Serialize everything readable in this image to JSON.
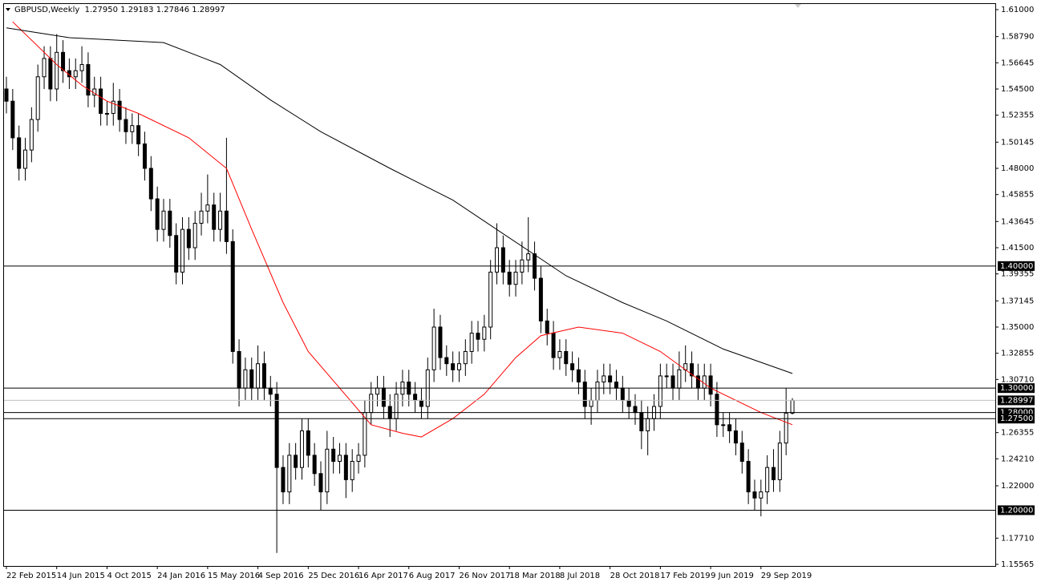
{
  "chart_data": {
    "type": "candlestick",
    "header": "GBPUSD,Weekly  1.27950 1.29183 1.27846 1.28997",
    "categories": [
      "22 Feb 2015",
      null,
      null,
      null,
      null,
      null,
      null,
      null,
      "14 Jun 2015",
      null,
      null,
      null,
      null,
      null,
      null,
      null,
      "4 Oct 2015",
      null,
      null,
      null,
      null,
      null,
      null,
      null,
      "24 Jan 2016",
      null,
      null,
      null,
      null,
      null,
      null,
      null,
      "15 May 2016",
      null,
      null,
      null,
      null,
      null,
      null,
      null,
      "4 Sep 2016",
      null,
      null,
      null,
      null,
      null,
      null,
      null,
      "25 Dec 2016",
      null,
      null,
      null,
      null,
      null,
      null,
      null,
      "16 Apr 2017",
      null,
      null,
      null,
      null,
      null,
      null,
      null,
      "6 Aug 2017",
      null,
      null,
      null,
      null,
      null,
      null,
      null,
      "26 Nov 2017",
      null,
      null,
      null,
      null,
      null,
      null,
      null,
      "18 Mar 2018",
      null,
      null,
      null,
      null,
      null,
      null,
      null,
      "8 Jul 2018",
      null,
      null,
      null,
      null,
      null,
      null,
      null,
      "28 Oct 2018",
      null,
      null,
      null,
      null,
      null,
      null,
      null,
      "17 Feb 2019",
      null,
      null,
      null,
      null,
      null,
      null,
      null,
      "9 Jun 2019",
      null,
      null,
      null,
      null,
      null,
      null,
      null,
      "29 Sep 2019",
      null,
      null,
      null,
      null,
      null
    ],
    "open": [
      1.545,
      1.535,
      1.505,
      1.48,
      1.495,
      1.52,
      1.555,
      1.57,
      1.545,
      1.575,
      1.56,
      1.555,
      1.56,
      1.565,
      1.54,
      1.545,
      1.525,
      1.525,
      1.535,
      1.52,
      1.51,
      1.515,
      1.5,
      1.48,
      1.455,
      1.43,
      1.445,
      1.425,
      1.395,
      1.43,
      1.415,
      1.435,
      1.445,
      1.45,
      1.43,
      1.445,
      1.42,
      1.33,
      1.3,
      1.315,
      1.3,
      1.32,
      1.3,
      1.295,
      1.235,
      1.215,
      1.245,
      1.235,
      1.265,
      1.245,
      1.23,
      1.215,
      1.25,
      1.24,
      1.245,
      1.225,
      1.24,
      1.245,
      1.28,
      1.295,
      1.3,
      1.285,
      1.275,
      1.295,
      1.305,
      1.295,
      1.29,
      1.285,
      1.315,
      1.35,
      1.325,
      1.32,
      1.315,
      1.32,
      1.33,
      1.345,
      1.34,
      1.35,
      1.395,
      1.415,
      1.395,
      1.385,
      1.395,
      1.405,
      1.41,
      1.39,
      1.355,
      1.345,
      1.325,
      1.33,
      1.32,
      1.315,
      1.305,
      1.285,
      1.29,
      1.305,
      1.31,
      1.305,
      1.3,
      1.29,
      1.285,
      1.28,
      1.265,
      1.275,
      1.285,
      1.31,
      1.31,
      1.3,
      1.315,
      1.32,
      1.31,
      1.3,
      1.31,
      1.295,
      1.27,
      1.27,
      1.265,
      1.255,
      1.24,
      1.215,
      1.21,
      1.215,
      1.235,
      1.225,
      1.255,
      1.2795
    ],
    "high": [
      1.555,
      1.545,
      1.515,
      1.505,
      1.53,
      1.565,
      1.58,
      1.58,
      1.59,
      1.585,
      1.57,
      1.57,
      1.58,
      1.575,
      1.555,
      1.555,
      1.535,
      1.55,
      1.545,
      1.53,
      1.525,
      1.525,
      1.51,
      1.49,
      1.465,
      1.455,
      1.455,
      1.435,
      1.44,
      1.44,
      1.445,
      1.46,
      1.475,
      1.46,
      1.46,
      1.505,
      1.43,
      1.34,
      1.325,
      1.325,
      1.335,
      1.33,
      1.31,
      1.305,
      1.245,
      1.255,
      1.255,
      1.275,
      1.275,
      1.255,
      1.24,
      1.265,
      1.26,
      1.255,
      1.255,
      1.25,
      1.255,
      1.29,
      1.305,
      1.31,
      1.31,
      1.295,
      1.305,
      1.315,
      1.315,
      1.305,
      1.3,
      1.325,
      1.365,
      1.36,
      1.335,
      1.33,
      1.33,
      1.34,
      1.355,
      1.355,
      1.36,
      1.405,
      1.435,
      1.425,
      1.405,
      1.405,
      1.42,
      1.44,
      1.42,
      1.4,
      1.365,
      1.355,
      1.34,
      1.34,
      1.33,
      1.325,
      1.315,
      1.3,
      1.315,
      1.32,
      1.32,
      1.315,
      1.31,
      1.3,
      1.295,
      1.29,
      1.285,
      1.295,
      1.32,
      1.32,
      1.32,
      1.33,
      1.335,
      1.33,
      1.32,
      1.32,
      1.32,
      1.305,
      1.28,
      1.28,
      1.275,
      1.265,
      1.25,
      1.225,
      1.225,
      1.245,
      1.25,
      1.265,
      1.3,
      1.29183
    ],
    "low": [
      1.525,
      1.495,
      1.47,
      1.47,
      1.485,
      1.51,
      1.545,
      1.535,
      1.535,
      1.55,
      1.545,
      1.545,
      1.55,
      1.53,
      1.53,
      1.515,
      1.515,
      1.515,
      1.51,
      1.5,
      1.5,
      1.49,
      1.47,
      1.445,
      1.42,
      1.42,
      1.415,
      1.385,
      1.385,
      1.405,
      1.405,
      1.425,
      1.435,
      1.42,
      1.42,
      1.41,
      1.32,
      1.285,
      1.29,
      1.29,
      1.29,
      1.29,
      1.285,
      1.165,
      1.205,
      1.205,
      1.225,
      1.225,
      1.235,
      1.22,
      1.2,
      1.205,
      1.23,
      1.23,
      1.21,
      1.215,
      1.23,
      1.235,
      1.27,
      1.285,
      1.275,
      1.26,
      1.265,
      1.285,
      1.285,
      1.28,
      1.275,
      1.275,
      1.305,
      1.315,
      1.31,
      1.305,
      1.305,
      1.31,
      1.32,
      1.33,
      1.33,
      1.34,
      1.385,
      1.385,
      1.375,
      1.375,
      1.385,
      1.395,
      1.38,
      1.345,
      1.335,
      1.315,
      1.315,
      1.31,
      1.305,
      1.295,
      1.275,
      1.27,
      1.28,
      1.295,
      1.295,
      1.29,
      1.28,
      1.275,
      1.27,
      1.25,
      1.245,
      1.265,
      1.275,
      1.3,
      1.29,
      1.29,
      1.305,
      1.3,
      1.29,
      1.29,
      1.285,
      1.26,
      1.26,
      1.255,
      1.245,
      1.23,
      1.205,
      1.2,
      1.195,
      1.205,
      1.215,
      1.215,
      1.245,
      1.27846
    ],
    "close": [
      1.535,
      1.505,
      1.48,
      1.495,
      1.52,
      1.555,
      1.57,
      1.545,
      1.575,
      1.56,
      1.555,
      1.56,
      1.565,
      1.54,
      1.545,
      1.525,
      1.525,
      1.535,
      1.52,
      1.51,
      1.515,
      1.5,
      1.48,
      1.455,
      1.43,
      1.445,
      1.425,
      1.395,
      1.43,
      1.415,
      1.435,
      1.445,
      1.45,
      1.43,
      1.445,
      1.42,
      1.33,
      1.3,
      1.315,
      1.3,
      1.32,
      1.3,
      1.295,
      1.235,
      1.215,
      1.245,
      1.235,
      1.265,
      1.245,
      1.23,
      1.215,
      1.25,
      1.24,
      1.245,
      1.225,
      1.24,
      1.245,
      1.28,
      1.295,
      1.3,
      1.285,
      1.275,
      1.295,
      1.305,
      1.295,
      1.29,
      1.285,
      1.315,
      1.35,
      1.325,
      1.32,
      1.315,
      1.32,
      1.33,
      1.345,
      1.34,
      1.35,
      1.395,
      1.415,
      1.395,
      1.385,
      1.395,
      1.405,
      1.41,
      1.39,
      1.355,
      1.345,
      1.325,
      1.33,
      1.32,
      1.315,
      1.305,
      1.285,
      1.29,
      1.305,
      1.31,
      1.305,
      1.3,
      1.29,
      1.285,
      1.28,
      1.265,
      1.275,
      1.285,
      1.31,
      1.31,
      1.3,
      1.315,
      1.32,
      1.31,
      1.3,
      1.31,
      1.295,
      1.27,
      1.27,
      1.265,
      1.255,
      1.24,
      1.215,
      1.21,
      1.215,
      1.235,
      1.225,
      1.255,
      1.2795,
      1.28997
    ],
    "overlays": [
      {
        "color": "#ff0000",
        "x": [
          1,
          8,
          12,
          16,
          21,
          29,
          35,
          39,
          44,
          48,
          53,
          58,
          63,
          66,
          71,
          76,
          81,
          85,
          91,
          98,
          104,
          112,
          120,
          125
        ],
        "values": [
          1.6,
          1.565,
          1.548,
          1.535,
          1.525,
          1.505,
          1.48,
          1.43,
          1.37,
          1.33,
          1.3,
          1.27,
          1.263,
          1.26,
          1.275,
          1.295,
          1.325,
          1.343,
          1.35,
          1.345,
          1.33,
          1.3,
          1.28,
          1.27
        ]
      },
      {
        "color": "#000000",
        "x": [
          0,
          10,
          25,
          34,
          42,
          50,
          61,
          71,
          80,
          89,
          98,
          105,
          114,
          125
        ],
        "values": [
          1.595,
          1.587,
          1.583,
          1.565,
          1.536,
          1.51,
          1.48,
          1.454,
          1.423,
          1.392,
          1.37,
          1.355,
          1.332,
          1.312
        ]
      }
    ],
    "levels": [
      {
        "value": 1.4,
        "label": "1.40000"
      },
      {
        "value": 1.3,
        "label": "1.30000"
      },
      {
        "value": 1.28,
        "label": "1.28000"
      },
      {
        "value": 1.275,
        "label": "1.27500"
      },
      {
        "value": 1.2,
        "label": "1.20000"
      }
    ],
    "ylim": [
      1.15565,
      1.61
    ],
    "yticks": [
      {
        "value": 1.61,
        "label": "1.61000"
      },
      {
        "value": 1.5879,
        "label": "1.58790"
      },
      {
        "value": 1.56645,
        "label": "1.56645"
      },
      {
        "value": 1.545,
        "label": "1.54500"
      },
      {
        "value": 1.52355,
        "label": "1.52355"
      },
      {
        "value": 1.50145,
        "label": "1.50145"
      },
      {
        "value": 1.48,
        "label": "1.48000"
      },
      {
        "value": 1.45855,
        "label": "1.45855"
      },
      {
        "value": 1.43645,
        "label": "1.43645"
      },
      {
        "value": 1.415,
        "label": "1.41500"
      },
      {
        "value": 1.39355,
        "label": "1.39355"
      },
      {
        "value": 1.37145,
        "label": "1.37145"
      },
      {
        "value": 1.35,
        "label": "1.35000"
      },
      {
        "value": 1.32855,
        "label": "1.32855"
      },
      {
        "value": 1.3071,
        "label": "1.30710"
      },
      {
        "value": 1.26355,
        "label": "1.26355"
      },
      {
        "value": 1.2421,
        "label": "1.24210"
      },
      {
        "value": 1.22,
        "label": "1.22000"
      },
      {
        "value": 1.1771,
        "label": "1.17710"
      },
      {
        "value": 1.15565,
        "label": "1.15565"
      }
    ],
    "grid": false
  }
}
